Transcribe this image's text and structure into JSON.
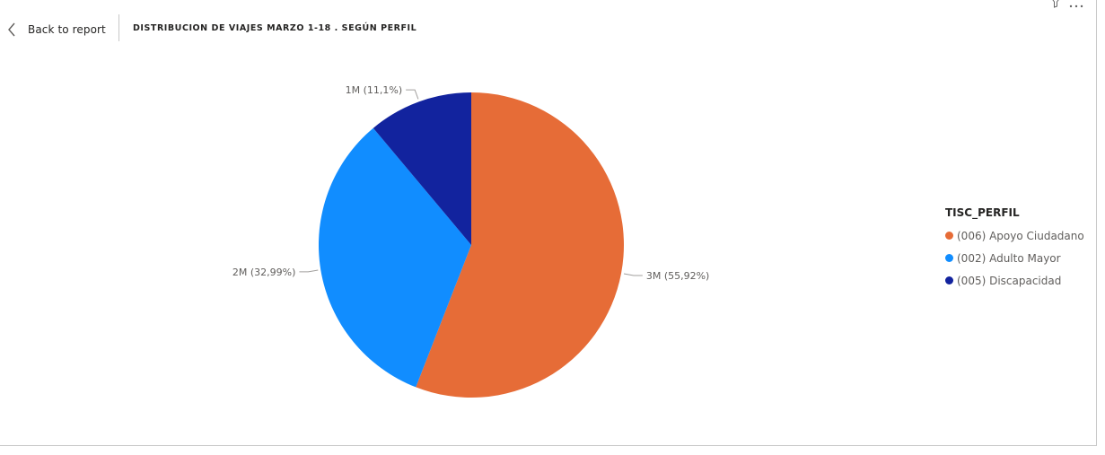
{
  "header": {
    "back_label": "Back to report",
    "title": "DISTRIBUCION DE VIAJES MARZO 1-18 . SEGÚN PERFIL"
  },
  "legend": {
    "title": "TISC_PERFIL"
  },
  "chart_data": {
    "type": "pie",
    "title": "DISTRIBUCION DE VIAJES MARZO 1-18 . SEGÚN PERFIL",
    "legend_title": "TISC_PERFIL",
    "legend_position": "right",
    "slices": [
      {
        "name": "(006) Apoyo Ciudadano",
        "value": 3,
        "percent": 55.92,
        "label": "3M (55,92%)",
        "color": "#e66c37"
      },
      {
        "name": "(002) Adulto Mayor",
        "value": 2,
        "percent": 32.99,
        "label": "2M (32,99%)",
        "color": "#118dff"
      },
      {
        "name": "(005) Discapacidad",
        "value": 1,
        "percent": 11.1,
        "label": "1M (11,1%)",
        "color": "#12239e"
      }
    ]
  }
}
